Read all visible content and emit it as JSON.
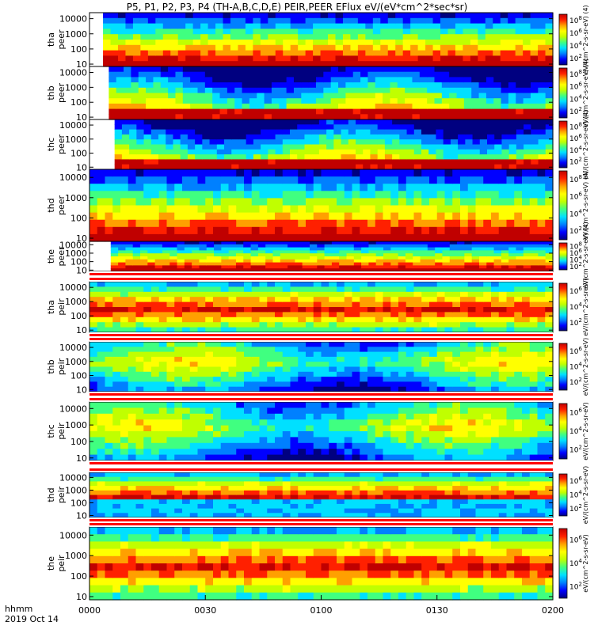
{
  "title": "P5, P1, P2, P3, P4 (TH-A,B,C,D,E) PEIR,PEER EFlux eV/(eV*cm^2*sec*sr)",
  "chart_data": {
    "type": "heatmap",
    "title": "P5, P1, P2, P3, P4 (TH-A,B,C,D,E) PEIR,PEER EFlux eV/(eV*cm^2*sec*sr)",
    "x_axis": {
      "ticks": [
        "0000",
        "0030",
        "0100",
        "0130",
        "0200"
      ],
      "range_minutes": [
        0,
        120
      ],
      "label_line1": "hhmm",
      "label_line2": "2019 Oct 14"
    },
    "y_axis": {
      "scale": "log",
      "range_eV": [
        7,
        25000
      ],
      "ticks": [
        "10",
        "100",
        "1000",
        "10000"
      ]
    },
    "colormap": [
      "#000080",
      "#0000ff",
      "#0080ff",
      "#00e0ff",
      "#40ff80",
      "#c0ff00",
      "#ffff00",
      "#ffa000",
      "#ff2000",
      "#c00000"
    ],
    "panels": [
      {
        "probe": "tha",
        "instrument": "peer",
        "label": "tha\npeer",
        "colorbar_ticks": [
          "10^2",
          "10^4",
          "10^6",
          "10^8"
        ],
        "colorbar_unit": "eV/(cm^2-s-sr-eV) (4)",
        "data_start_minute": 3.5
      },
      {
        "probe": "thb",
        "instrument": "peer",
        "label": "thb\npeer",
        "colorbar_ticks": [
          "10^2",
          "10^4",
          "10^6",
          "10^8"
        ],
        "colorbar_unit": "eV/(cm^2-s-sr-eV) (4)",
        "data_start_minute": 5.0
      },
      {
        "probe": "thc",
        "instrument": "peer",
        "label": "thc\npeer",
        "colorbar_ticks": [
          "10^2",
          "10^4",
          "10^6",
          "10^8"
        ],
        "colorbar_unit": "eV/(cm^2-s-sr-eV) (4)",
        "data_start_minute": 6.5
      },
      {
        "probe": "thd",
        "instrument": "peer",
        "label": "thd\npeer",
        "colorbar_ticks": [
          "10^2",
          "10^4",
          "10^6",
          "10^8"
        ],
        "colorbar_unit": "eV/(cm^2-s-sr-eV) (4)",
        "data_start_minute": 0
      },
      {
        "probe": "the",
        "instrument": "peer",
        "label": "the\npeer",
        "colorbar_ticks": [
          "10^2",
          "10^4",
          "10^6",
          "10^8"
        ],
        "colorbar_unit": "eV/(cm^2-s-sr-eV) (4)",
        "data_start_minute": 5.5
      },
      {
        "probe": "tha",
        "instrument": "peir",
        "label": "tha\npeir",
        "colorbar_ticks": [
          "10^2",
          "10^4",
          "10^6"
        ],
        "colorbar_unit": "eV/(cm^2-s-sr-eV)",
        "data_start_minute": 0
      },
      {
        "probe": "thb",
        "instrument": "peir",
        "label": "thb\npeir",
        "colorbar_ticks": [
          "10^2",
          "10^4",
          "10^6"
        ],
        "colorbar_unit": "eV/(cm^2-s-sr-eV)",
        "data_start_minute": 0
      },
      {
        "probe": "thc",
        "instrument": "peir",
        "label": "thc\npeir",
        "colorbar_ticks": [
          "10^2",
          "10^4",
          "10^6"
        ],
        "colorbar_unit": "eV/(cm^2-s-sr-eV)",
        "data_start_minute": 0
      },
      {
        "probe": "thd",
        "instrument": "peir",
        "label": "thd\npeir",
        "colorbar_ticks": [
          "10^2",
          "10^4",
          "10^6"
        ],
        "colorbar_unit": "eV/(cm^2-s-sr-eV)",
        "data_start_minute": 0
      },
      {
        "probe": "the",
        "instrument": "peir",
        "label": "the\npeir",
        "colorbar_ticks": [
          "10^2",
          "10^4",
          "10^6"
        ],
        "colorbar_unit": "eV/(cm^2-s-sr-eV)",
        "data_start_minute": 0
      }
    ]
  }
}
